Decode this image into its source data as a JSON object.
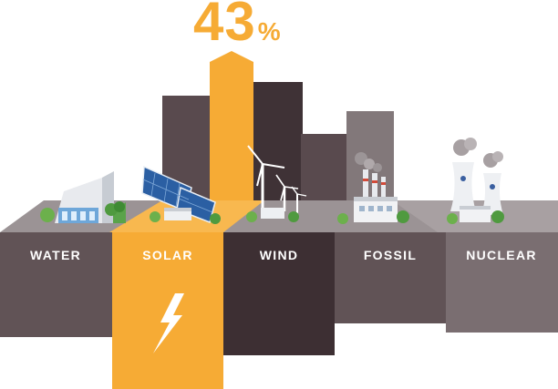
{
  "headline": {
    "value": "43",
    "unit": "%"
  },
  "sources": [
    {
      "label": "WATER"
    },
    {
      "label": "SOLAR"
    },
    {
      "label": "WIND"
    },
    {
      "label": "FOSSIL"
    },
    {
      "label": "NUCLEAR"
    }
  ],
  "colors": {
    "accent": "#f6ab35",
    "water_bar": "#615356",
    "wind_bar": "#3d2f33",
    "fossil_bar": "#615356",
    "nuclear_bar": "#7a6e71",
    "back_bar_a": "#594a4e",
    "back_bar_b": "#3f3236",
    "back_bar_c": "#6d6164",
    "back_bar_d": "#82787a",
    "platform_top": "#9b9395"
  },
  "icons": [
    "hydro-dam-icon",
    "solar-panel-farm-icon",
    "wind-turbine-icon",
    "fossil-power-plant-icon",
    "nuclear-power-plant-icon",
    "lightning-bolt-icon"
  ]
}
